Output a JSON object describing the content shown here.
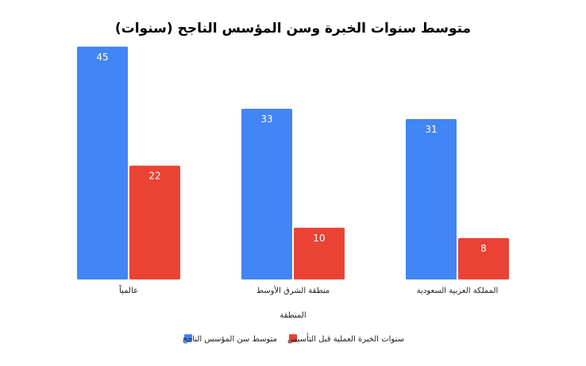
{
  "chart_data": {
    "type": "bar",
    "title": "متوسط سنوات الخبرة وسن المؤسس الناجح (سنوات)",
    "xlabel": "المنطقة",
    "ylabel": "",
    "categories": [
      "عالمياً",
      "منطقة الشرق الأوسط",
      "المملكة العربية السعودية"
    ],
    "series": [
      {
        "name": "متوسط سن المؤسس الناجح",
        "values": [
          45,
          33,
          31
        ],
        "color": "#4285F4"
      },
      {
        "name": "سنوات الخبرة العملية قبل التأسيس",
        "values": [
          22,
          10,
          8
        ],
        "color": "#EA4335"
      }
    ],
    "ylim": [
      0,
      46.5
    ],
    "grid": false,
    "legend_position": "bottom",
    "data_labels": true
  }
}
